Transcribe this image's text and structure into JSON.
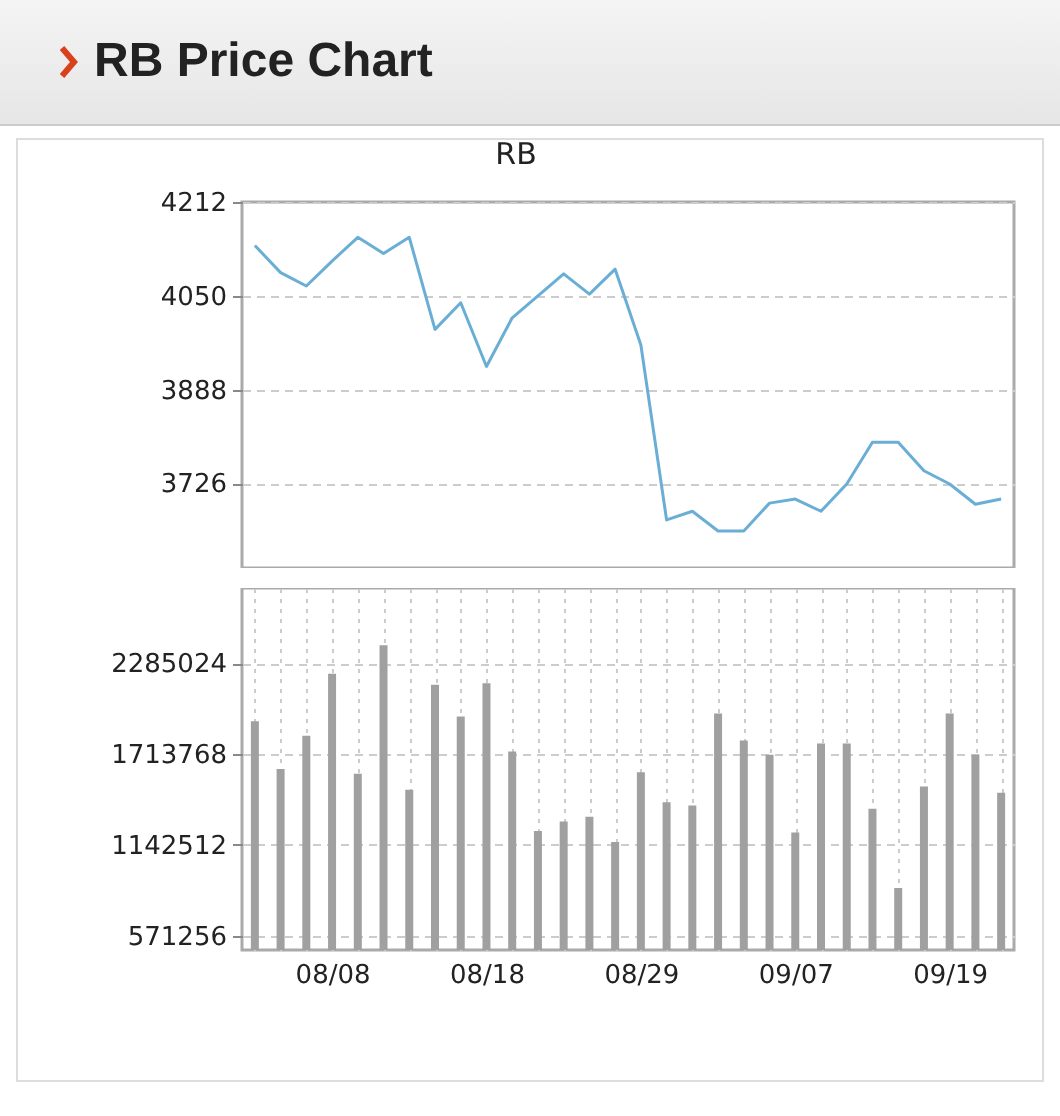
{
  "chart_data": [
    {
      "type": "line",
      "title": "RB Price Chart",
      "subtitle": "RB",
      "categories": [
        null,
        null,
        null,
        null,
        null,
        null,
        null,
        null,
        null,
        null,
        null,
        null,
        null,
        null,
        null,
        null,
        null,
        null,
        null,
        null,
        null,
        null,
        null,
        null,
        null,
        null,
        null,
        null,
        null,
        null
      ],
      "series": [
        {
          "color": "#6aaed6",
          "values": [
            4137,
            4090,
            4067,
            4110,
            4151,
            4123,
            4151,
            3992,
            4038,
            3928,
            4012,
            4050,
            4088,
            4053,
            4096,
            3965,
            3663,
            3678,
            3644,
            3644,
            3692,
            3699,
            3678,
            3725,
            3797,
            3797,
            3748,
            3725,
            3690,
            3699
          ]
        }
      ],
      "ylim": [
        3580,
        4212
      ],
      "yticks": [
        3726,
        3888,
        4050,
        4212
      ],
      "grid": "y",
      "tick_labels": "y",
      "marker": "none"
    },
    {
      "type": "bar",
      "categories": [
        null,
        null,
        null,
        "08/08",
        null,
        null,
        null,
        null,
        null,
        "08/18",
        null,
        null,
        null,
        null,
        null,
        "08/29",
        null,
        null,
        null,
        null,
        null,
        "09/07",
        null,
        null,
        null,
        null,
        null,
        "09/19",
        null,
        null
      ],
      "series": [
        {
          "color": "#a0a0a0",
          "values": [
            1920000,
            1620000,
            1830000,
            2220000,
            1590000,
            2400000,
            1490000,
            2150000,
            1950000,
            2160000,
            1730000,
            1230000,
            1290000,
            1320000,
            1160000,
            1600000,
            1410000,
            1390000,
            1970000,
            1800000,
            1710000,
            1220000,
            1780000,
            1780000,
            1370000,
            870000,
            1510000,
            1970000,
            1710000,
            1470000
          ]
        }
      ],
      "ylim": [
        480000,
        2760000
      ],
      "yticks": [
        571256,
        1142512,
        1713768,
        2285024
      ],
      "grid": true
    }
  ]
}
